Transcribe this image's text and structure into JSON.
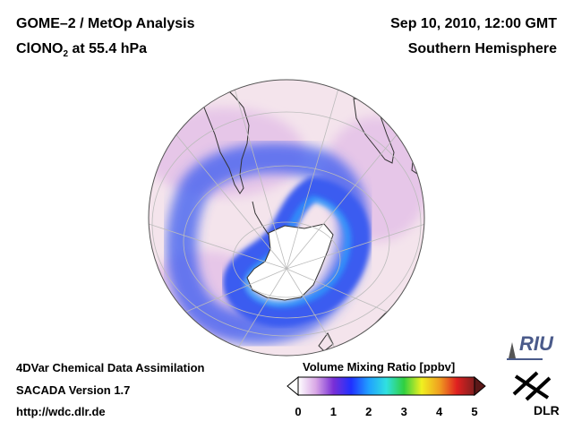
{
  "header": {
    "title_line1": "GOME–2 / MetOp Analysis",
    "species": "ClONO",
    "species_sub": "2",
    "species_rest": " at 55.4 hPa",
    "datetime": "Sep 10, 2010, 12:00 GMT",
    "region": "Southern Hemisphere"
  },
  "footer": {
    "line1": "4DVar Chemical Data Assimilation",
    "line2": "SACADA Version 1.7",
    "line3": "http://wdc.dlr.de"
  },
  "colorbar": {
    "title": "Volume Mixing Ratio [ppbv]",
    "ticks": [
      "0",
      "1",
      "2",
      "3",
      "4",
      "5"
    ],
    "stops": [
      "#ffffff",
      "#d9a8e6",
      "#7a2fd6",
      "#2030ff",
      "#20a0ff",
      "#30e0e0",
      "#30d040",
      "#f0f020",
      "#f0a020",
      "#e02020",
      "#802020"
    ]
  },
  "logos": {
    "riu": "RIU",
    "dlr": "DLR"
  },
  "map": {
    "projection": "orthographic",
    "hemisphere": "Southern Hemisphere",
    "background_color": "#f4e4ec",
    "low_color": "#e6c6e8",
    "band_color": "#3a5cf0",
    "band_core_color": "#28a8ff"
  }
}
